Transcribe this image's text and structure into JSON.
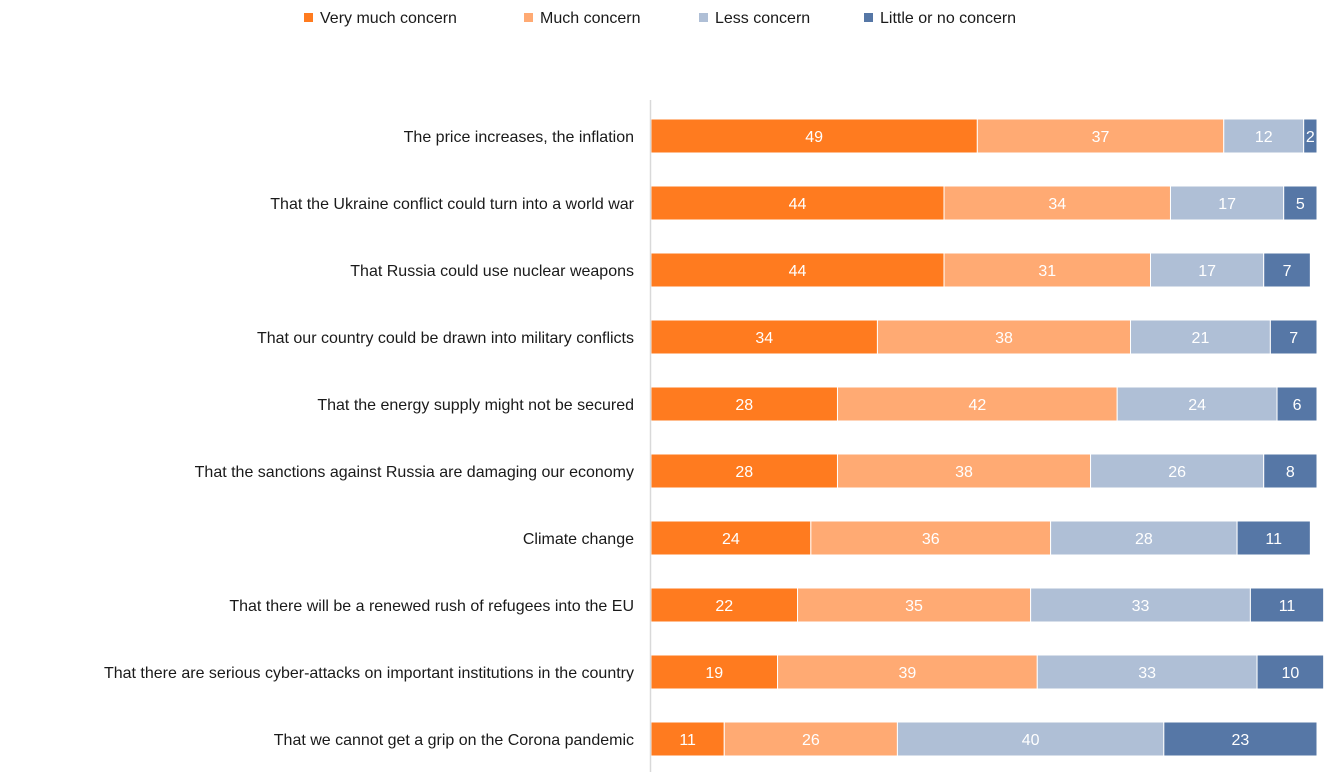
{
  "chart_data": {
    "type": "bar",
    "orientation": "horizontal",
    "stacked": true,
    "title": "",
    "xlabel": "",
    "ylabel": "",
    "xlim": [
      0,
      100
    ],
    "grid": false,
    "legend_position": "top-center",
    "categories": [
      "The price increases, the inflation",
      "That the Ukraine conflict could turn into a world war",
      "That Russia could use nuclear weapons",
      "That our country could be drawn into military conflicts",
      "That the energy supply might not be secured",
      "That the sanctions against Russia are damaging our economy",
      "Climate change",
      "That there will be a renewed rush of refugees into the EU",
      "That there are serious cyber-attacks on important institutions in the country",
      "That we cannot get a grip on the Corona pandemic"
    ],
    "series": [
      {
        "name": "Very much concern",
        "color": "#FF7B1F",
        "values": [
          49,
          44,
          44,
          34,
          28,
          28,
          24,
          22,
          19,
          11
        ]
      },
      {
        "name": "Much concern",
        "color": "#FFAA73",
        "values": [
          37,
          34,
          31,
          38,
          42,
          38,
          36,
          35,
          39,
          26
        ]
      },
      {
        "name": "Less concern",
        "color": "#AFBFD6",
        "values": [
          12,
          17,
          17,
          21,
          24,
          26,
          28,
          33,
          33,
          40
        ]
      },
      {
        "name": "Little or no concern",
        "color": "#5677A6",
        "values": [
          2,
          5,
          7,
          7,
          6,
          8,
          11,
          11,
          10,
          23
        ]
      }
    ],
    "axis_color": "#D9D9D9",
    "label_color": "#FFFFFF",
    "text_color": "#1A1A1A"
  }
}
